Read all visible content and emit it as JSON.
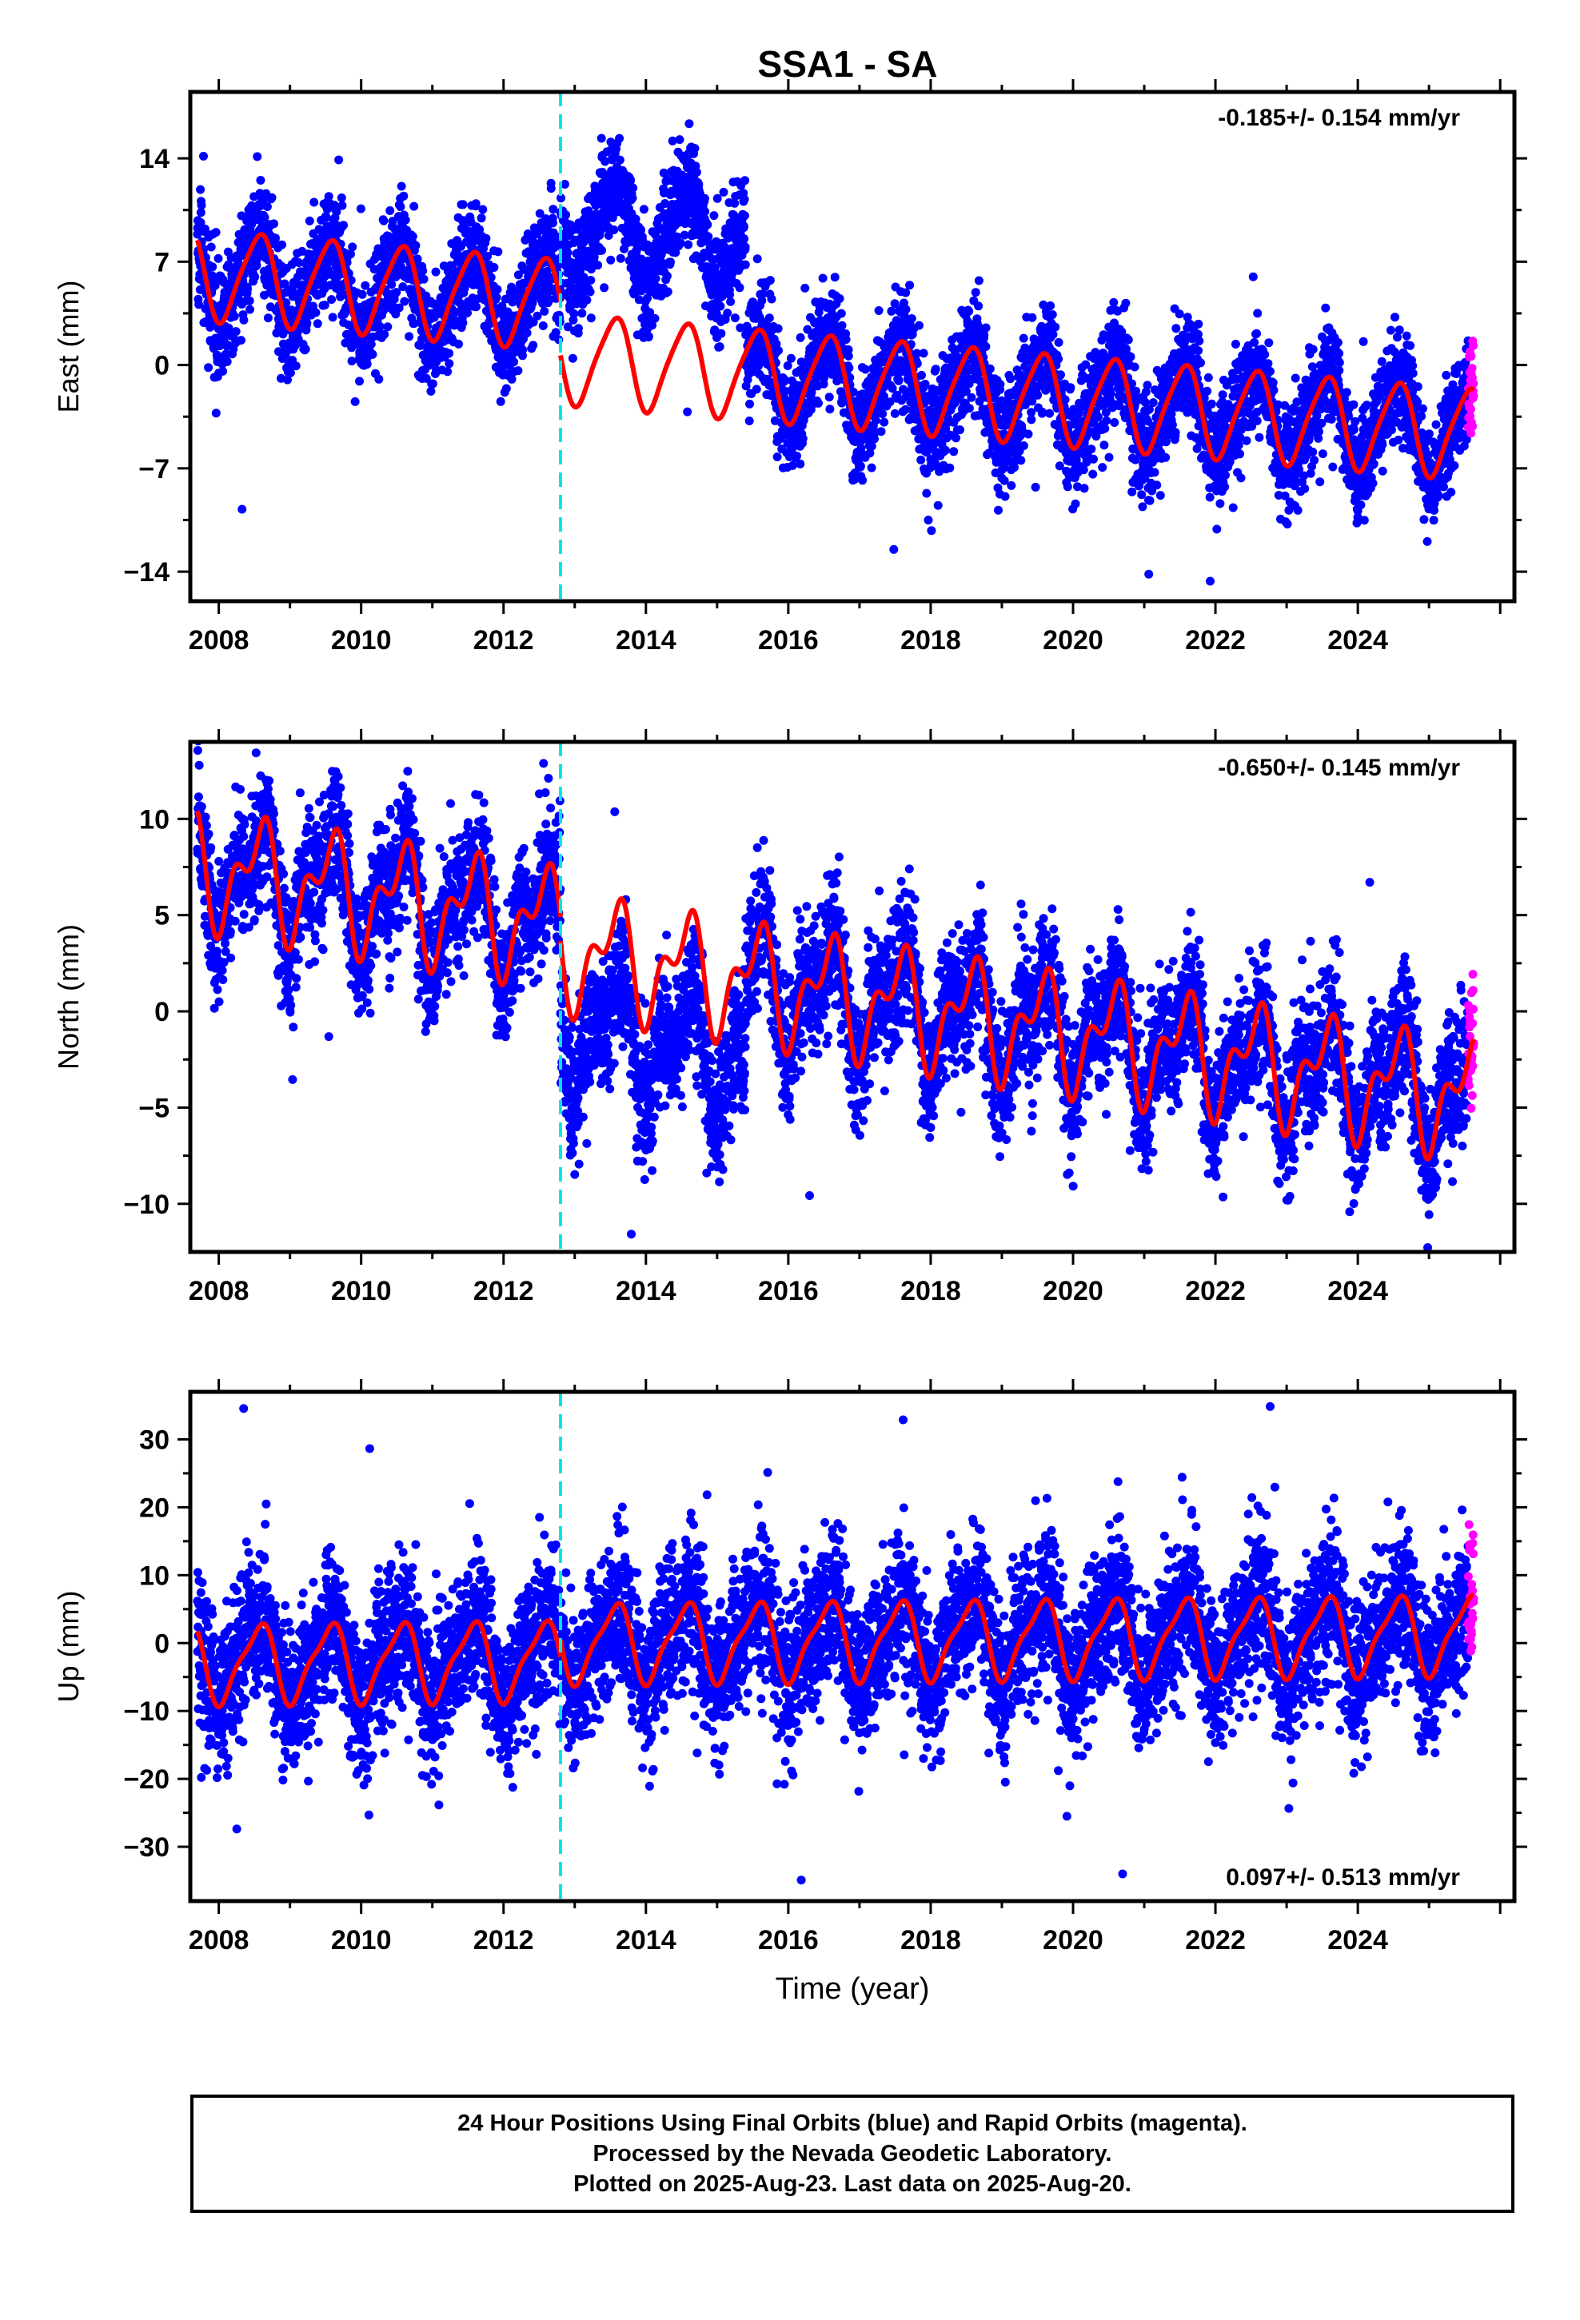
{
  "title": "SSA1 - SA",
  "colors": {
    "final": "#0000ff",
    "rapid": "#ff00ff",
    "model": "#ff0000",
    "offset": "#00e5e5"
  },
  "footer": {
    "line1": "24 Hour Positions Using Final Orbits (blue) and Rapid Orbits (magenta).",
    "line2": "Processed by the Nevada Geodetic Laboratory.",
    "line3": "Plotted on 2025-Aug-23. Last data on 2025-Aug-20."
  },
  "chart_data": [
    {
      "type": "scatter",
      "component": "east",
      "ylabel": "East (mm)",
      "xlabel": "",
      "xlim": [
        2007.6,
        2026.2
      ],
      "ylim": [
        -16,
        18.5
      ],
      "yticks": [
        14,
        7,
        0,
        -7,
        -14
      ],
      "xticks": [
        2008,
        2010,
        2012,
        2014,
        2016,
        2018,
        2020,
        2022,
        2024
      ],
      "rate": "-0.185+/- 0.154 mm/yr",
      "rate_position": "top-right",
      "offset_epoch": 2012.8,
      "data_start": 2007.7,
      "final_end": 2025.55,
      "last_data": 2025.63,
      "model": {
        "trend": -0.4,
        "annual": 3.0,
        "semiannual": 0.5,
        "noise": 1.8,
        "segments": [
          {
            "from": 2007.7,
            "to": 2012.8,
            "offset": 6.2
          },
          {
            "from": 2012.8,
            "to": 2026.0,
            "offset": 0.5
          }
        ]
      },
      "data_anomaly": {
        "from": 2012.8,
        "to": 2015.4,
        "shift": 9.0
      }
    },
    {
      "type": "scatter",
      "component": "north",
      "ylabel": "North (mm)",
      "xlabel": "",
      "xlim": [
        2007.6,
        2026.2
      ],
      "ylim": [
        -12.5,
        14
      ],
      "yticks": [
        10,
        5,
        0,
        -5,
        -10
      ],
      "xticks": [
        2008,
        2010,
        2012,
        2014,
        2016,
        2018,
        2020,
        2022,
        2024
      ],
      "rate": "-0.650+/- 0.145 mm/yr",
      "rate_position": "top-right",
      "offset_epoch": 2012.8,
      "data_start": 2007.7,
      "final_end": 2025.55,
      "last_data": 2025.63,
      "model": {
        "trend": -0.6,
        "annual": 2.4,
        "semiannual": 1.5,
        "noise": 1.7,
        "segments": [
          {
            "from": 2007.7,
            "to": 2012.8,
            "offset": 7.5,
            "start_year": 2007.7
          },
          {
            "from": 2012.8,
            "to": 2026.0,
            "offset": 3.2,
            "start_year": 2012.8
          }
        ]
      },
      "data_anomaly": {
        "from": 2012.8,
        "to": 2015.4,
        "shift": -4.0
      }
    },
    {
      "type": "scatter",
      "component": "up",
      "ylabel": "Up (mm)",
      "xlabel": "Time (year)",
      "xlim": [
        2007.6,
        2026.2
      ],
      "ylim": [
        -38,
        37
      ],
      "yticks": [
        30,
        20,
        10,
        0,
        -10,
        -20,
        -30
      ],
      "xticks": [
        2008,
        2010,
        2012,
        2014,
        2016,
        2018,
        2020,
        2022,
        2024
      ],
      "rate": "0.097+/- 0.513 mm/yr",
      "rate_position": "bottom-right",
      "offset_epoch": 2012.8,
      "data_start": 2007.7,
      "final_end": 2025.55,
      "last_data": 2025.63,
      "model": {
        "trend": 0.1,
        "annual": 5.5,
        "semiannual": 1.5,
        "noise": 5.5,
        "segments": [
          {
            "from": 2007.7,
            "to": 2012.8,
            "offset": -3.0,
            "start_year": 2007.7
          },
          {
            "from": 2012.8,
            "to": 2026.0,
            "offset": 0.0,
            "start_year": 2012.8
          }
        ]
      },
      "data_anomaly": null
    }
  ]
}
